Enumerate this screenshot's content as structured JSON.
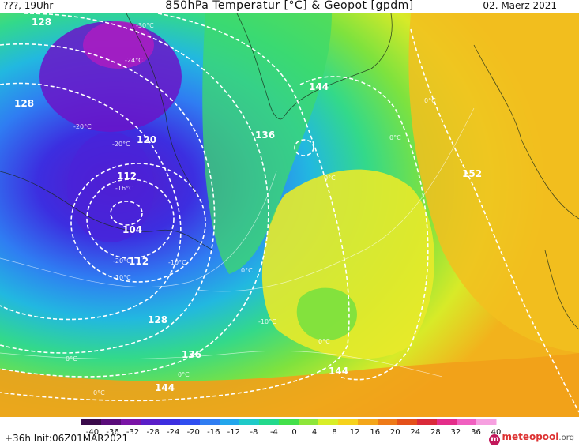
{
  "header": {
    "left": "???, 19Uhr",
    "title": "850hPa Temperatur [°C] & Geopot [gpdm]",
    "date": "02. Maerz 2021"
  },
  "footer": {
    "run": "+36h  Init:06Z01MAR2021",
    "brand": "meteopool",
    "brand_suffix": ".org"
  },
  "legend": {
    "ticks": [
      "-40",
      "-36",
      "-32",
      "-28",
      "-24",
      "-20",
      "-16",
      "-12",
      "-8",
      "-4",
      "0",
      "4",
      "8",
      "12",
      "16",
      "20",
      "24",
      "28",
      "32",
      "36",
      "40"
    ],
    "colors": [
      "#3a0a4a",
      "#5a0c7a",
      "#7a14a6",
      "#5a1ec8",
      "#3c2ee0",
      "#2f4ef0",
      "#2f7df2",
      "#22a6ec",
      "#1fcac8",
      "#23d98c",
      "#43e04a",
      "#8ee63a",
      "#d8ee28",
      "#f6d21c",
      "#f4a61a",
      "#ee7a18",
      "#e4501a",
      "#da2a3a",
      "#e42e8a",
      "#f060c0",
      "#f6a0e0"
    ]
  },
  "contours": {
    "geopot_labels": [
      "128",
      "128",
      "120",
      "112",
      "104",
      "112",
      "128",
      "136",
      "144",
      "136",
      "144",
      "144",
      "152"
    ],
    "temp_labels": [
      "-30°C",
      "-24°C",
      "-20°C",
      "-20°C",
      "-16°C",
      "-20°C",
      "-10°C",
      "-10°C",
      "0°C",
      "0°C",
      "0°C",
      "0°C",
      "0°C",
      "0°C",
      "0°C",
      "0°C",
      "-10°C"
    ]
  },
  "colors": {
    "contour": "#ffffff",
    "deep_cold": "#6a1cc4",
    "cold": "#2f6ef0",
    "cool": "#1fd0b0",
    "mild": "#6ee050",
    "warm": "#e8ea2a",
    "hot": "#f2a81c"
  }
}
